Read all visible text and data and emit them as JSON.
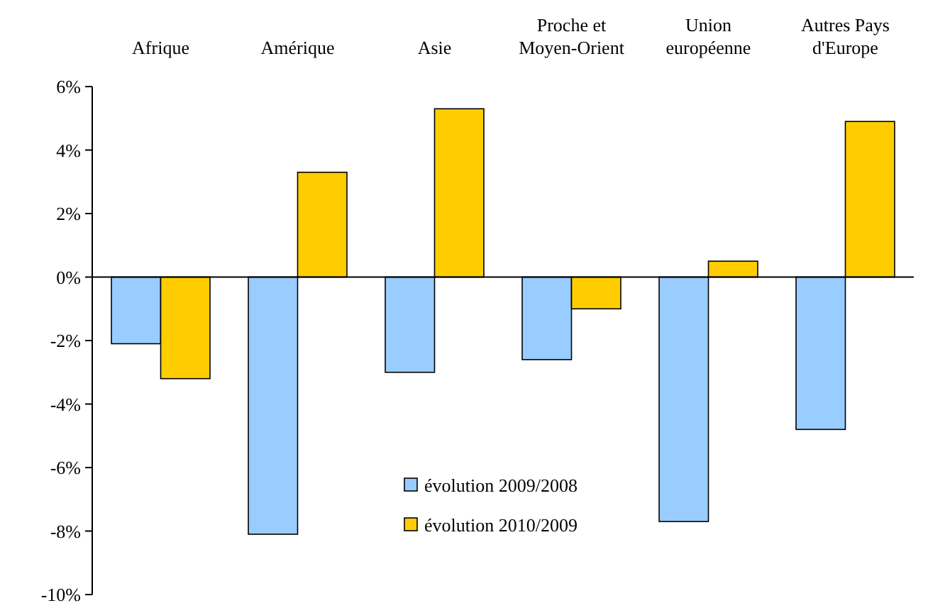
{
  "chart_data": {
    "type": "bar",
    "categories": [
      "Afrique",
      "Amérique",
      "Asie",
      "Proche et Moyen-Orient",
      "Union européenne",
      "Autres Pays d'Europe"
    ],
    "series": [
      {
        "name": "évolution 2009/2008",
        "color": "#99ccff",
        "values": [
          -2.1,
          -8.1,
          -3.0,
          -2.6,
          -7.7,
          -4.8
        ]
      },
      {
        "name": "évolution 2010/2009",
        "color": "#ffcc00",
        "values": [
          -3.2,
          3.3,
          5.3,
          -1.0,
          0.5,
          4.9
        ]
      }
    ],
    "ylim": [
      -10,
      6
    ],
    "yticks": [
      {
        "value": -10,
        "label": "-10%"
      },
      {
        "value": -8,
        "label": "-8%"
      },
      {
        "value": -6,
        "label": "-6%"
      },
      {
        "value": -4,
        "label": "-4%"
      },
      {
        "value": -2,
        "label": "-2%"
      },
      {
        "value": 0,
        "label": "0%"
      },
      {
        "value": 2,
        "label": "2%"
      },
      {
        "value": 4,
        "label": "4%"
      },
      {
        "value": 6,
        "label": "6%"
      }
    ],
    "legend": "bottom"
  }
}
